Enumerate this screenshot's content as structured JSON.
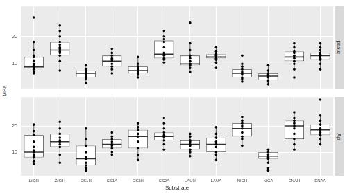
{
  "chart_data": {
    "type": "box",
    "x_label": "Substrate",
    "y_label": "MPa",
    "categories": [
      "LiSiH",
      "ZrSiH",
      "CS1H",
      "CS1A",
      "CS2H",
      "CS2A",
      "LAUH",
      "LAUA",
      "NiCH",
      "NiCA",
      "ENAH",
      "ENAA"
    ],
    "ylim": [
      1,
      31
    ],
    "yticks": [
      10,
      20
    ],
    "grid": true,
    "panels": [
      {
        "title": "paste",
        "boxes": [
          {
            "min": 6.5,
            "q1": 8.5,
            "median": 9,
            "q3": 12.5,
            "max": 18,
            "points": [
              6.5,
              7,
              8,
              8.5,
              9,
              9,
              9.5,
              10,
              11,
              12.5,
              13,
              15,
              18,
              27
            ]
          },
          {
            "min": 7.5,
            "q1": 13,
            "median": 15,
            "q3": 18,
            "max": 24,
            "points": [
              7.5,
              11,
              13,
              14,
              14.5,
              15,
              15.5,
              16,
              17,
              18,
              20,
              22,
              24
            ]
          },
          {
            "min": 3,
            "q1": 5,
            "median": 6.5,
            "q3": 7.5,
            "max": 9.5,
            "points": [
              3,
              4.5,
              5,
              5.5,
              6,
              6.5,
              7,
              7.5,
              8,
              9.5
            ]
          },
          {
            "min": 6.5,
            "q1": 9,
            "median": 11,
            "q3": 13,
            "max": 15.5,
            "points": [
              6.5,
              8,
              9,
              10,
              11,
              11.5,
              12,
              13,
              14,
              15.5
            ]
          },
          {
            "min": 5,
            "q1": 6.5,
            "median": 7.5,
            "q3": 9,
            "max": 12.5,
            "points": [
              5,
              6,
              6.5,
              7,
              7.5,
              8,
              8.5,
              9,
              10,
              12.5
            ]
          },
          {
            "min": 10.5,
            "q1": 12,
            "median": 13.5,
            "q3": 18.5,
            "max": 22,
            "points": [
              10.5,
              11.5,
              12,
              13,
              13.5,
              14,
              16,
              18,
              19,
              20,
              22
            ]
          },
          {
            "min": 7,
            "q1": 9.5,
            "median": 10,
            "q3": 13,
            "max": 17.5,
            "points": [
              7,
              8.5,
              9.5,
              10,
              10,
              11,
              12,
              13,
              15,
              17.5,
              25
            ]
          },
          {
            "min": 10,
            "q1": 12,
            "median": 12.5,
            "q3": 13.5,
            "max": 16,
            "points": [
              8.5,
              10.5,
              11.5,
              12,
              12.5,
              12.5,
              13,
              13.5,
              14.5,
              16
            ]
          },
          {
            "min": 3.5,
            "q1": 5,
            "median": 6.5,
            "q3": 8,
            "max": 10,
            "points": [
              3.5,
              4.5,
              5,
              6,
              6.5,
              7,
              8,
              9,
              10,
              13
            ]
          },
          {
            "min": 2.5,
            "q1": 4,
            "median": 5.5,
            "q3": 6.5,
            "max": 9.5,
            "points": [
              2.5,
              3.5,
              4,
              5,
              5.5,
              6,
              6.5,
              7.5,
              9.5
            ]
          },
          {
            "min": 8,
            "q1": 11,
            "median": 12.5,
            "q3": 14.5,
            "max": 17.5,
            "points": [
              5,
              8,
              10,
              11,
              12,
              12.5,
              13,
              14,
              14.5,
              16,
              17.5
            ]
          },
          {
            "min": 8,
            "q1": 11.5,
            "median": 13,
            "q3": 14,
            "max": 17.5,
            "points": [
              8,
              10,
              11.5,
              12,
              12.5,
              13,
              13.5,
              14,
              15,
              16,
              17.5
            ]
          }
        ]
      },
      {
        "title": "Ap",
        "boxes": [
          {
            "min": 5.5,
            "q1": 8,
            "median": 10,
            "q3": 16.5,
            "max": 20.5,
            "points": [
              5.5,
              6.5,
              8,
              9,
              10,
              10.5,
              12,
              14,
              16.5,
              18,
              20.5
            ]
          },
          {
            "min": 6,
            "q1": 12,
            "median": 14,
            "q3": 17,
            "max": 21.5,
            "points": [
              6,
              9,
              12,
              13,
              14,
              14.5,
              15.5,
              17,
              19,
              21.5
            ]
          },
          {
            "min": 3,
            "q1": 5,
            "median": 7.5,
            "q3": 12.5,
            "max": 19,
            "points": [
              3,
              4,
              5,
              6,
              7.5,
              8,
              10,
              12.5,
              15,
              19
            ]
          },
          {
            "min": 9,
            "q1": 11.5,
            "median": 13,
            "q3": 15,
            "max": 17.5,
            "points": [
              9,
              10,
              11.5,
              12.5,
              13,
              14,
              15,
              16,
              17.5
            ]
          },
          {
            "min": 7,
            "q1": 11.5,
            "median": 16,
            "q3": 18.5,
            "max": 21,
            "points": [
              7,
              9,
              11.5,
              14,
              16,
              17,
              18.5,
              19.5,
              21
            ]
          },
          {
            "min": 11,
            "q1": 14.5,
            "median": 16,
            "q3": 17.5,
            "max": 21,
            "points": [
              11,
              13,
              14.5,
              15.5,
              16,
              16.5,
              17.5,
              19,
              21,
              23
            ]
          },
          {
            "min": 8.5,
            "q1": 11,
            "median": 13,
            "q3": 14.5,
            "max": 17,
            "points": [
              8.5,
              10,
              11,
              12.5,
              13,
              14,
              14.5,
              16,
              17
            ]
          },
          {
            "min": 7,
            "q1": 10,
            "median": 13,
            "q3": 15.5,
            "max": 19.5,
            "points": [
              7,
              9,
              10,
              12,
              13,
              14,
              15.5,
              17,
              19.5
            ]
          },
          {
            "min": 12.5,
            "q1": 16,
            "median": 19,
            "q3": 21,
            "max": 23.5,
            "points": [
              12.5,
              15,
              16,
              17.5,
              19,
              20,
              21,
              22,
              23.5
            ]
          },
          {
            "min": 6,
            "q1": 7.5,
            "median": 8.5,
            "q3": 10,
            "max": 11,
            "points": [
              3,
              3.5,
              4,
              6,
              7.5,
              8,
              8.5,
              9,
              10,
              11
            ]
          },
          {
            "min": 11,
            "q1": 15,
            "median": 20,
            "q3": 22,
            "max": 25,
            "points": [
              11,
              13,
              15,
              17,
              19,
              20,
              21,
              22,
              23,
              25
            ]
          },
          {
            "min": 13,
            "q1": 16.5,
            "median": 18.5,
            "q3": 20.5,
            "max": 24,
            "points": [
              13,
              15,
              16.5,
              17.5,
              18.5,
              19,
              20.5,
              22,
              24,
              30
            ]
          }
        ]
      }
    ]
  }
}
